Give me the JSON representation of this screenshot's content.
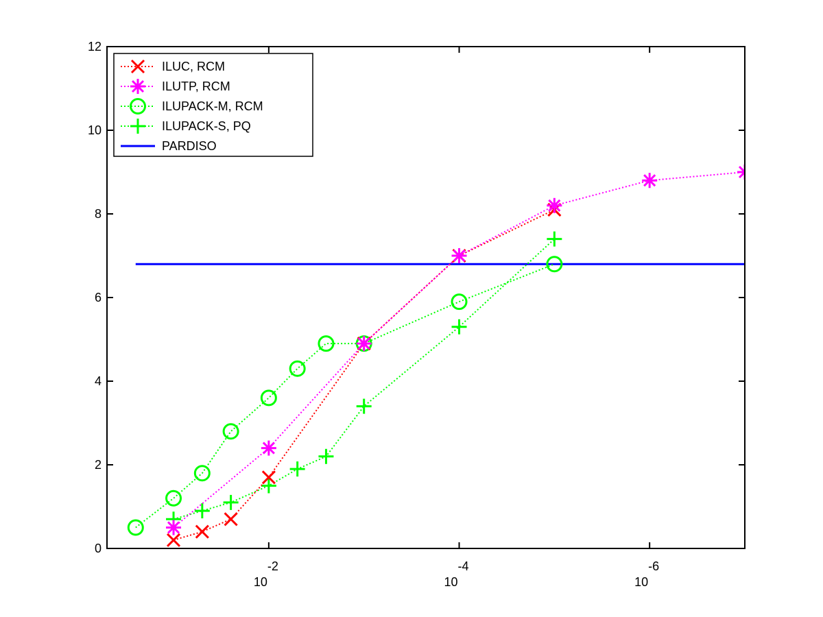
{
  "chart_data": {
    "type": "line",
    "x_scale": "log",
    "x_reversed": true,
    "xlim": [
      0.5,
      1e-07
    ],
    "ylim": [
      0,
      12
    ],
    "grid": false,
    "legend_position": "top-left",
    "x_ticks": [
      {
        "value": 0.01,
        "base": "10",
        "exponent": "-2"
      },
      {
        "value": 0.0001,
        "base": "10",
        "exponent": "-4"
      },
      {
        "value": 1e-06,
        "base": "10",
        "exponent": "-6"
      }
    ],
    "y_ticks": [
      {
        "value": 0,
        "label": "0"
      },
      {
        "value": 2,
        "label": "2"
      },
      {
        "value": 4,
        "label": "4"
      },
      {
        "value": 6,
        "label": "6"
      },
      {
        "value": 8,
        "label": "8"
      },
      {
        "value": 10,
        "label": "10"
      },
      {
        "value": 12,
        "label": "12"
      }
    ],
    "series": [
      {
        "name": "ILUC, RCM",
        "color": "#ff0000",
        "line": "dotted",
        "marker": "x",
        "x": [
          0.1,
          0.05,
          0.025,
          0.01,
          0.001,
          0.0001,
          1e-05
        ],
        "y": [
          0.2,
          0.4,
          0.7,
          1.7,
          4.9,
          7.0,
          8.1
        ]
      },
      {
        "name": "ILUTP, RCM",
        "color": "#ff00ff",
        "line": "dotted",
        "marker": "asterisk",
        "x": [
          0.1,
          0.01,
          0.001,
          0.0001,
          1e-05,
          1e-06,
          1e-07
        ],
        "y": [
          0.5,
          2.4,
          4.9,
          7.0,
          8.2,
          8.8,
          9.0
        ]
      },
      {
        "name": "ILUPACK-M, RCM",
        "color": "#00ff00",
        "line": "dotted",
        "marker": "circle",
        "x": [
          0.25,
          0.1,
          0.05,
          0.025,
          0.01,
          0.005,
          0.0025,
          0.001,
          0.0001,
          1e-05
        ],
        "y": [
          0.5,
          1.2,
          1.8,
          2.8,
          3.6,
          4.3,
          4.9,
          4.9,
          5.9,
          6.8
        ]
      },
      {
        "name": "ILUPACK-S, PQ",
        "color": "#00ff00",
        "line": "dotted",
        "marker": "plus",
        "x": [
          0.1,
          0.05,
          0.025,
          0.01,
          0.005,
          0.0025,
          0.001,
          0.0001,
          1e-05
        ],
        "y": [
          0.7,
          0.9,
          1.1,
          1.5,
          1.9,
          2.2,
          3.4,
          5.3,
          7.4
        ]
      },
      {
        "name": "PARDISO",
        "color": "#0000ff",
        "line": "solid",
        "marker": "none",
        "x": [
          0.25,
          1e-07
        ],
        "y": [
          6.8,
          6.8
        ]
      }
    ]
  }
}
